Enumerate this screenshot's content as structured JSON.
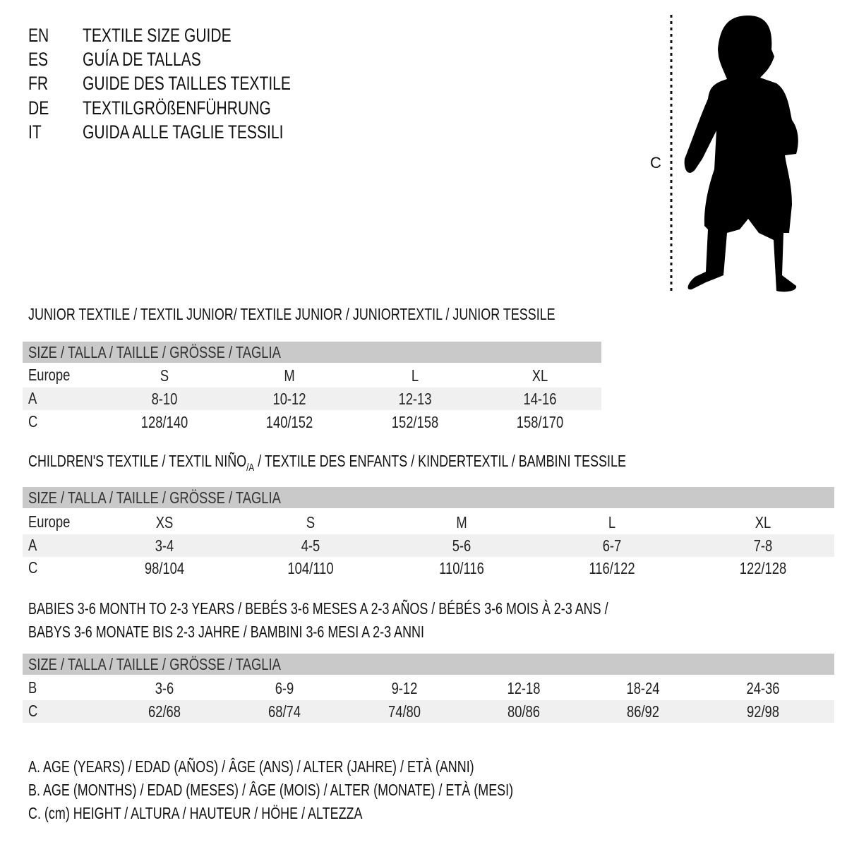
{
  "title_lines": [
    {
      "code": "EN",
      "text": "TEXTILE SIZE GUIDE"
    },
    {
      "code": "ES",
      "text": "GUÍA DE TALLAS"
    },
    {
      "code": "FR",
      "text": "GUIDE DES TAILLES TEXTILE"
    },
    {
      "code": "DE",
      "text": "TEXTILGRÖßENFÜHRUNG"
    },
    {
      "code": "IT",
      "text": "GUIDA ALLE TAGLIE TESSILI"
    }
  ],
  "figure": {
    "measure_label": "C",
    "icon": "baby-silhouette-icon"
  },
  "size_header": "SIZE / TALLA / TAILLE / GRÖSSE / TAGLIA",
  "junior": {
    "title": "JUNIOR TEXTILE / TEXTIL JUNIOR/ TEXTILE JUNIOR / JUNIORTEXTIL / JUNIOR TESSILE",
    "rows": [
      {
        "label": "Europe",
        "values": [
          "S",
          "M",
          "L",
          "XL"
        ]
      },
      {
        "label": "A",
        "values": [
          "8-10",
          "10-12",
          "12-13",
          "14-16"
        ]
      },
      {
        "label": "C",
        "values": [
          "128/140",
          "140/152",
          "152/158",
          "158/170"
        ]
      }
    ]
  },
  "children": {
    "title_a": "CHILDREN'S TEXTILE / TEXTIL NIÑO",
    "title_sub": "/A",
    "title_b": " / TEXTILE DES ENFANTS / KINDERTEXTIL / BAMBINI TESSILE",
    "rows": [
      {
        "label": "Europe",
        "values": [
          "XS",
          "S",
          "M",
          "L",
          "XL"
        ]
      },
      {
        "label": "A",
        "values": [
          "3-4",
          "4-5",
          "5-6",
          "6-7",
          "7-8"
        ]
      },
      {
        "label": "C",
        "values": [
          "98/104",
          "104/110",
          "110/116",
          "116/122",
          "122/128"
        ]
      }
    ]
  },
  "babies": {
    "title_1": "BABIES 3-6 MONTH TO 2-3 YEARS / BEBÉS 3-6 MESES A 2-3 AÑOS / BÉBÉS 3-6 MOIS À 2-3 ANS /",
    "title_2": "BABYS 3-6 MONATE BIS 2-3 JAHRE / BAMBINI 3-6 MESI A 2-3 ANNI",
    "rows": [
      {
        "label": "B",
        "values": [
          "3-6",
          "6-9",
          "9-12",
          "12-18",
          "18-24",
          "24-36"
        ]
      },
      {
        "label": "C",
        "values": [
          "62/68",
          "68/74",
          "74/80",
          "80/86",
          "86/92",
          "92/98"
        ]
      }
    ]
  },
  "legend": [
    "A. AGE (YEARS) / EDAD (AÑOS) / ÂGE (ANS) / ALTER (JAHRE) / ETÀ (ANNI)",
    "B. AGE (MONTHS) / EDAD (MESES) / ÂGE (MOIS) / ALTER (MONATE) / ETÀ (MESI)",
    "C. (cm) HEIGHT / ALTURA / HAUTEUR / HÖHE / ALTEZZA"
  ],
  "colors": {
    "header_bar": "#c9c9c9",
    "alt_row": "#f0f0f0",
    "text": "#111111"
  }
}
